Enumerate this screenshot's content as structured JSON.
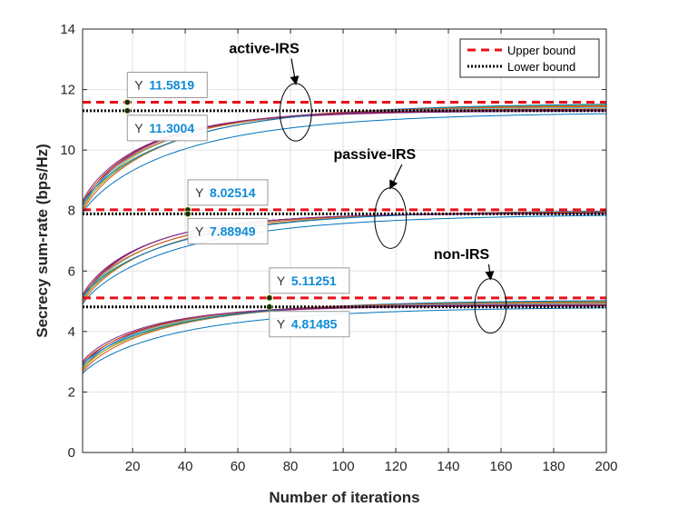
{
  "chart_data": {
    "type": "line",
    "title": "",
    "xlabel": "Number of iterations",
    "ylabel": "Secrecy sum-rate  (bps/Hz)",
    "xlim": [
      1,
      200
    ],
    "ylim": [
      0,
      14
    ],
    "xticks": [
      20,
      40,
      60,
      80,
      100,
      120,
      140,
      160,
      180,
      200
    ],
    "yticks": [
      0,
      2,
      4,
      6,
      8,
      10,
      12,
      14
    ],
    "grid": true,
    "legend": {
      "placement": "top-right",
      "entries": [
        {
          "label": "Upper bound",
          "style": "dashed",
          "color": "#e8101a"
        },
        {
          "label": "Lower bound",
          "style": "dotted",
          "color": "#000000"
        }
      ]
    },
    "groups": [
      {
        "name": "active-IRS",
        "upper_bound": 11.5819,
        "lower_bound": 11.3004,
        "start_min": 7.9,
        "start_max": 8.3,
        "final_min": 11.26,
        "final_max": 11.56,
        "series_count": 10
      },
      {
        "name": "passive-IRS",
        "upper_bound": 8.02514,
        "lower_bound": 7.88949,
        "start_min": 4.9,
        "start_max": 5.2,
        "final_min": 7.89,
        "final_max": 8.02,
        "series_count": 10
      },
      {
        "name": "non-IRS",
        "upper_bound": 5.11251,
        "lower_bound": 4.81485,
        "start_min": 2.6,
        "start_max": 3.0,
        "final_min": 4.82,
        "final_max": 5.05,
        "series_count": 10
      }
    ],
    "series_colors": [
      "#0072bd",
      "#d95319",
      "#edb120",
      "#7e2f8e",
      "#77ac30",
      "#4dbeee",
      "#a2142f",
      "#0072bd",
      "#d95319",
      "#7e2f8e"
    ],
    "datatips": [
      {
        "x": 18,
        "y": 11.5819,
        "key": "Y",
        "value": "11.5819",
        "side": "above"
      },
      {
        "x": 18,
        "y": 11.3004,
        "key": "Y",
        "value": "11.3004",
        "side": "below"
      },
      {
        "x": 41,
        "y": 8.02514,
        "key": "Y",
        "value": "8.02514",
        "side": "above"
      },
      {
        "x": 41,
        "y": 7.88949,
        "key": "Y",
        "value": "7.88949",
        "side": "below"
      },
      {
        "x": 72,
        "y": 5.11251,
        "key": "Y",
        "value": "5.11251",
        "side": "above"
      },
      {
        "x": 72,
        "y": 4.81485,
        "key": "Y",
        "value": "4.81485",
        "side": "below"
      }
    ],
    "annotations": [
      {
        "text": "active-IRS",
        "ellipse_center": [
          82,
          11.25
        ],
        "ellipse_rx": 6,
        "ellipse_ry": 0.95,
        "label_at": [
          70,
          13.2
        ]
      },
      {
        "text": "passive-IRS",
        "ellipse_center": [
          118,
          7.75
        ],
        "ellipse_rx": 6,
        "ellipse_ry": 1.0,
        "label_at": [
          112,
          9.7
        ]
      },
      {
        "text": "non-IRS",
        "ellipse_center": [
          156,
          4.85
        ],
        "ellipse_rx": 6,
        "ellipse_ry": 0.9,
        "label_at": [
          145,
          6.4
        ]
      }
    ]
  }
}
